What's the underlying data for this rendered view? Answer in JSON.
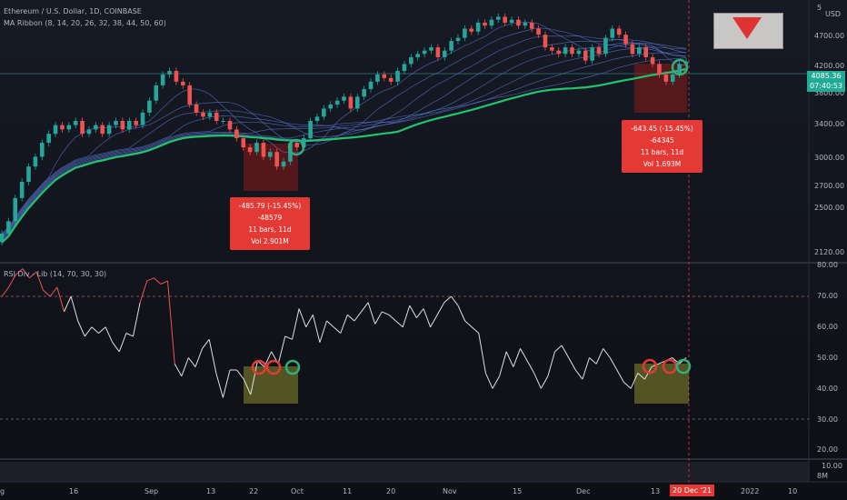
{
  "header": {
    "symbol_title": "Ethereum / U.S. Dollar, 1D, COINBASE",
    "ma_ribbon_title": "MA Ribbon (8, 14, 20, 26, 32, 38, 44, 50, 60)",
    "rsi_title": "RSI Div - Lib (14, 70, 30, 30)",
    "currency": "USD"
  },
  "price_axis": {
    "ticks": [
      "4700.00",
      "4200.00",
      "3800.00",
      "3400.00",
      "3000.00",
      "2700.00",
      "2500.00",
      "2120.00"
    ],
    "top_partial": "5",
    "last_price": "4085.36",
    "countdown": "07:40:53"
  },
  "rsi_axis": {
    "ticks": [
      "80.00",
      "70.00",
      "60.00",
      "50.00",
      "40.00",
      "30.00",
      "20.00",
      "10.00"
    ]
  },
  "volume_axis": {
    "label": "8M"
  },
  "time_axis": {
    "ticks": [
      "g",
      "16",
      "Sep",
      "13",
      "22",
      "Oct",
      "11",
      "20",
      "Nov",
      "15",
      "Dec",
      "13",
      "2022",
      "10"
    ],
    "highlight": "20 Dec '21"
  },
  "measure_boxes": [
    {
      "line1": "-485.79 (-15.45%) -48579",
      "line2": "11 bars, 11d",
      "line3": "Vol 2.901M"
    },
    {
      "line1": "-643.45 (-15.45%) -64345",
      "line2": "11 bars, 11d",
      "line3": "Vol 1.693M"
    }
  ],
  "colors": {
    "background": "#131722",
    "up": "#26a69a",
    "down": "#ef5350",
    "ma_main": "#22c36c",
    "ma_ribbon": "#5b7bd5",
    "rsi_line": "#e0e0e0",
    "rsi_overbought": "#ef5350",
    "measure_box": "#e53935",
    "zone_fill": "#8a8a2e"
  },
  "chart_data": [
    {
      "type": "candlestick",
      "title": "Ethereum / U.S. Dollar, 1D, COINBASE",
      "ylim": [
        2000,
        5000
      ],
      "x_range": [
        "2021-08-07",
        "2022-01-12"
      ],
      "series": [
        {
          "name": "ETHUSD close (approx)",
          "values": [
            2200,
            2300,
            2500,
            2650,
            2800,
            2900,
            3050,
            3150,
            3250,
            3200,
            3250,
            3300,
            3150,
            3200,
            3250,
            3150,
            3250,
            3300,
            3200,
            3300,
            3250,
            3400,
            3550,
            3750,
            3900,
            3950,
            3800,
            3750,
            3500,
            3400,
            3350,
            3400,
            3300,
            3300,
            3200,
            3100,
            3000,
            2950,
            3050,
            2900,
            2950,
            2800,
            2850,
            3050,
            3000,
            3100,
            3300,
            3350,
            3450,
            3500,
            3550,
            3600,
            3450,
            3600,
            3700,
            3800,
            3900,
            3850,
            3800,
            3950,
            4050,
            4150,
            4200,
            4250,
            4300,
            4150,
            4250,
            4400,
            4450,
            4600,
            4550,
            4700,
            4650,
            4750,
            4800,
            4700,
            4750,
            4650,
            4700,
            4600,
            4500,
            4300,
            4250,
            4200,
            4300,
            4200,
            4250,
            4100,
            4300,
            4200,
            4450,
            4600,
            4500,
            4350,
            4200,
            4300,
            4150,
            4050,
            3900,
            3800,
            3900,
            4050,
            4085.36
          ]
        }
      ]
    },
    {
      "type": "line",
      "title": "RSI Div - Lib (14, 70, 30, 30)",
      "ylim": [
        15,
        80
      ],
      "series": [
        {
          "name": "RSI",
          "values": [
            70,
            73,
            77,
            79,
            76,
            78,
            72,
            70,
            73,
            65,
            70,
            62,
            57,
            60,
            58,
            60,
            55,
            52,
            58,
            57,
            68,
            75,
            76,
            74,
            75,
            48,
            44,
            50,
            47,
            53,
            56,
            45,
            37,
            46,
            46,
            43,
            38,
            49,
            47,
            52,
            48,
            57,
            56,
            66,
            60,
            64,
            55,
            62,
            60,
            58,
            64,
            62,
            65,
            68,
            61,
            65,
            64,
            62,
            60,
            67,
            63,
            66,
            60,
            64,
            68,
            70,
            67,
            62,
            60,
            58,
            45,
            40,
            44,
            52,
            47,
            53,
            49,
            45,
            40,
            44,
            52,
            54,
            50,
            46,
            43,
            50,
            48,
            53,
            50,
            46,
            42,
            40,
            45,
            43,
            47,
            48,
            49,
            50,
            48,
            50
          ]
        }
      ]
    }
  ]
}
